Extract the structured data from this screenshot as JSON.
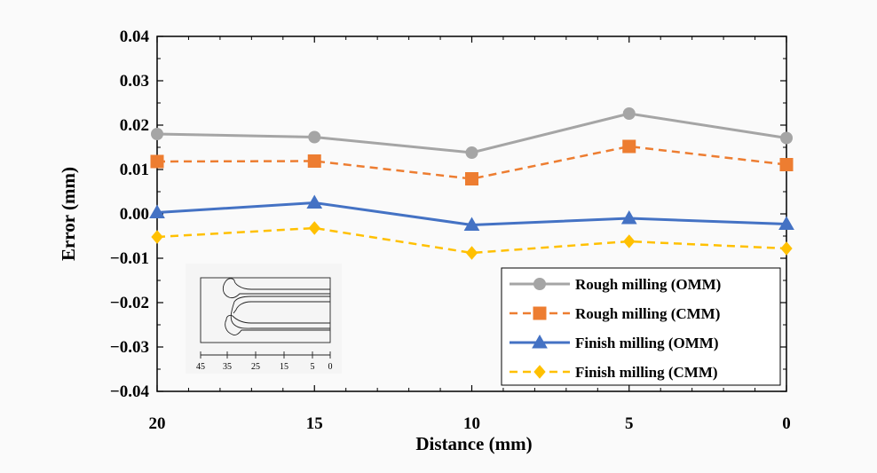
{
  "chart_data": {
    "type": "line",
    "title": "",
    "xlabel": "Distance (mm)",
    "ylabel": "Error (mm)",
    "categories": [
      "20",
      "15",
      "10",
      "5",
      "0"
    ],
    "ylim": [
      -0.04,
      0.04
    ],
    "yticks": [
      "0.04",
      "0.03",
      "0.02",
      "0.01",
      "0.00",
      "−0.01",
      "−0.02",
      "−0.03",
      "−0.04"
    ],
    "ytick_values": [
      0.04,
      0.03,
      0.02,
      0.01,
      0.0,
      -0.01,
      -0.02,
      -0.03,
      -0.04
    ],
    "grid": false,
    "legend_position": "bottom-right",
    "series": [
      {
        "name": "Rough milling (OMM)",
        "values": [
          0.018,
          0.0173,
          0.0138,
          0.0226,
          0.0171
        ],
        "color": "#a5a5a5",
        "marker": "circle",
        "dash": "solid"
      },
      {
        "name": "Rough milling (CMM)",
        "values": [
          0.0118,
          0.0119,
          0.0079,
          0.0152,
          0.0111
        ],
        "color": "#ed7d31",
        "marker": "square",
        "dash": "dashed"
      },
      {
        "name": "Finish milling (OMM)",
        "values": [
          0.0003,
          0.0025,
          -0.0025,
          -0.001,
          -0.0023
        ],
        "color": "#4472c4",
        "marker": "triangle",
        "dash": "solid"
      },
      {
        "name": "Finish milling (CMM)",
        "values": [
          -0.0052,
          -0.0032,
          -0.0088,
          -0.0062,
          -0.0078
        ],
        "color": "#ffc000",
        "marker": "diamond",
        "dash": "dashed"
      }
    ],
    "inset": {
      "scale_labels": [
        "45",
        "35",
        "25",
        "15",
        "5",
        "0"
      ]
    }
  }
}
